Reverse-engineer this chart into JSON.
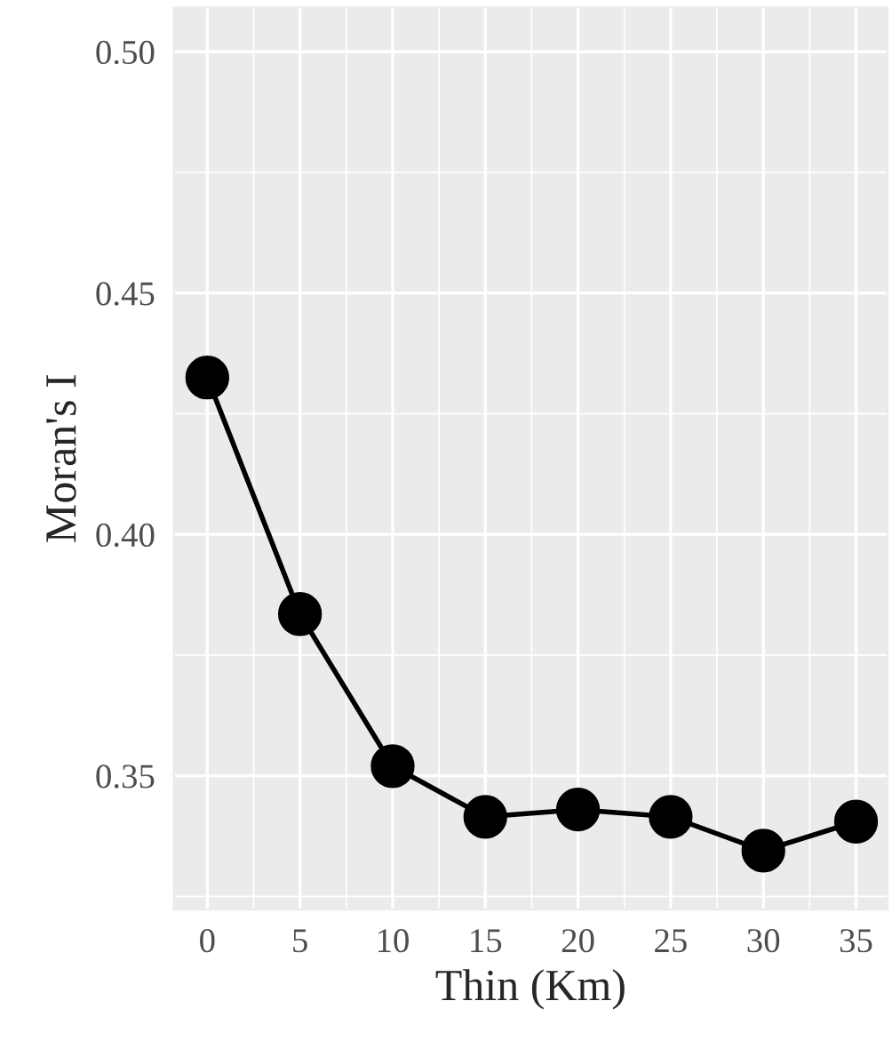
{
  "chart_data": {
    "type": "line",
    "xlabel": "Thin (Km)",
    "ylabel": "Moran's I",
    "x": [
      0,
      5,
      10,
      15,
      20,
      25,
      30,
      35
    ],
    "series": [
      {
        "color": "#000000",
        "values": [
          0.4325,
          0.3835,
          0.352,
          0.3415,
          0.343,
          0.3415,
          0.3345,
          0.3405
        ]
      }
    ],
    "xlim": [
      -1.8,
      36.7
    ],
    "ylim": [
      0.3223,
      0.5092
    ],
    "xticks": [
      0,
      5,
      10,
      15,
      20,
      25,
      30,
      35
    ],
    "yticks": [
      {
        "value": 0.35,
        "label": "0.35"
      },
      {
        "value": 0.4,
        "label": "0.40"
      },
      {
        "value": 0.45,
        "label": "0.45"
      },
      {
        "value": 0.5,
        "label": "0.50"
      }
    ],
    "grid": true,
    "marker": "circle",
    "line_style": "solid"
  }
}
